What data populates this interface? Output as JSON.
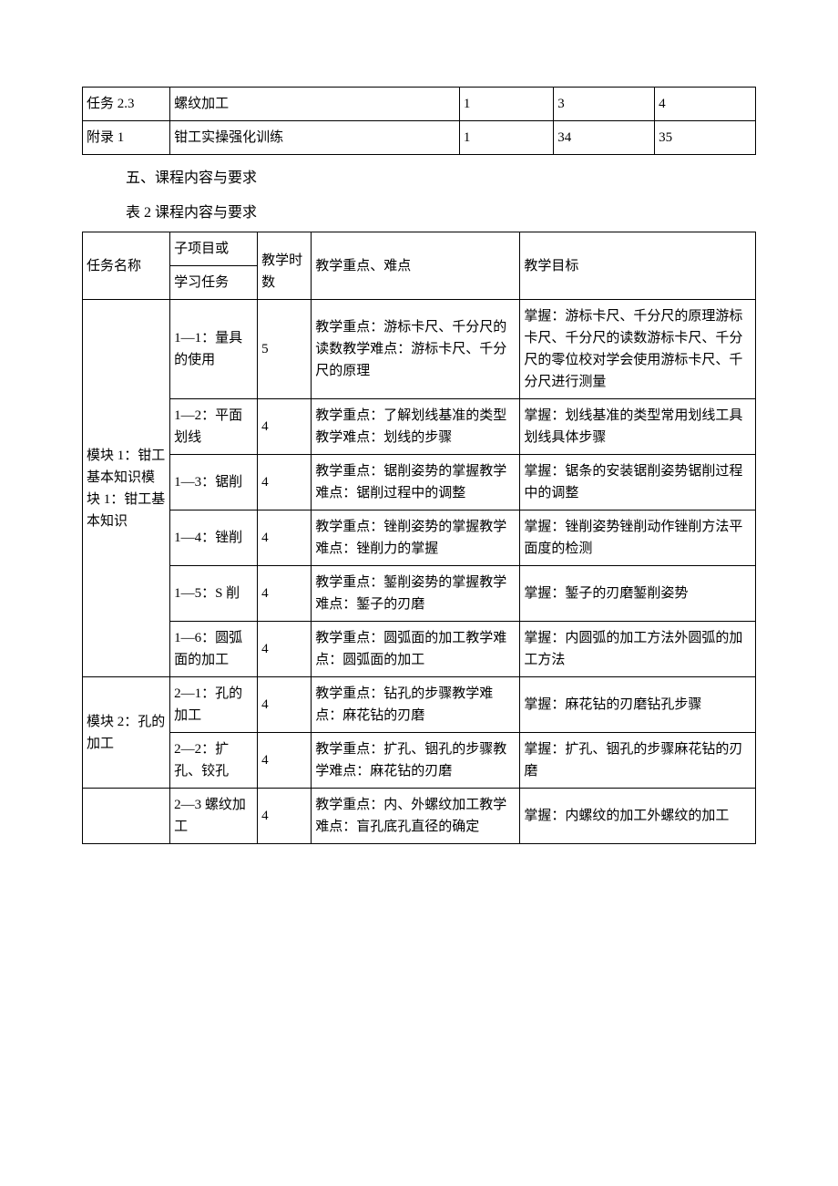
{
  "table1": {
    "rows": [
      {
        "c1": "任务 2.3",
        "c2": "螺纹加工",
        "c3": "1",
        "c4": "3",
        "c5": "4"
      },
      {
        "c1": "附录 1",
        "c2": "钳工实操强化训练",
        "c3": "1",
        "c4": "34",
        "c5": "35"
      }
    ]
  },
  "section5_title": "五、课程内容与要求",
  "table2_caption": "表 2 课程内容与要求",
  "table2": {
    "header": {
      "c1": "任务名称",
      "c2_top": "子项目或",
      "c2_bot": "学习任务",
      "c3": "教学时数",
      "c4": "教学重点、难点",
      "c5": "教学目标"
    },
    "module1_label": "模块 1：钳工基本知识模块 1：钳工基本知识",
    "module1_rows": [
      {
        "sub": "1—1：量具的使用",
        "hours": "5",
        "focus": "教学重点：游标卡尺、千分尺的读数教学难点：游标卡尺、千分尺的原理",
        "goal": "掌握：游标卡尺、千分尺的原理游标卡尺、千分尺的读数游标卡尺、千分尺的零位校对学会使用游标卡尺、千分尺进行测量"
      },
      {
        "sub": "1—2：平面划线",
        "hours": "4",
        "focus": "教学重点：了解划线基准的类型教学难点：划线的步骤",
        "goal": "掌握：划线基准的类型常用划线工具划线具体步骤"
      },
      {
        "sub": "1—3：锯削",
        "hours": "4",
        "focus": "教学重点：锯削姿势的掌握教学难点：锯削过程中的调整",
        "goal": "掌握：锯条的安装锯削姿势锯削过程中的调整"
      },
      {
        "sub": "1—4：锉削",
        "hours": "4",
        "focus": "教学重点：锉削姿势的掌握教学难点：锉削力的掌握",
        "goal": "掌握：锉削姿势锉削动作锉削方法平面度的检测"
      },
      {
        "sub": "1—5：S 削",
        "hours": "4",
        "focus": "教学重点：錾削姿势的掌握教学难点：錾子的刃磨",
        "goal": "掌握：錾子的刃磨錾削姿势"
      },
      {
        "sub": "1—6：圆弧面的加工",
        "hours": "4",
        "focus": "教学重点：圆弧面的加工教学难点：圆弧面的加工",
        "goal": "掌握：内圆弧的加工方法外圆弧的加工方法"
      }
    ],
    "module2_label": "模块 2：孔的加工",
    "module2_rows": [
      {
        "sub": "2—1：孔的加工",
        "hours": "4",
        "focus": "教学重点：钻孔的步骤教学难点：麻花钻的刃磨",
        "goal": "掌握：麻花钻的刃磨钻孔步骤"
      },
      {
        "sub": "2—2：扩孔、铰孔",
        "hours": "4",
        "focus": "教学重点：扩孔、铟孔的步骤教学难点：麻花钻的刃磨",
        "goal": "掌握：扩孔、铟孔的步骤麻花钻的刃磨"
      }
    ],
    "module3_rows": [
      {
        "sub": "2—3 螺纹加工",
        "hours": "4",
        "focus": "教学重点：内、外螺纹加工教学难点：盲孔底孔直径的确定",
        "goal": "掌握：内螺纹的加工外螺纹的加工"
      }
    ]
  }
}
